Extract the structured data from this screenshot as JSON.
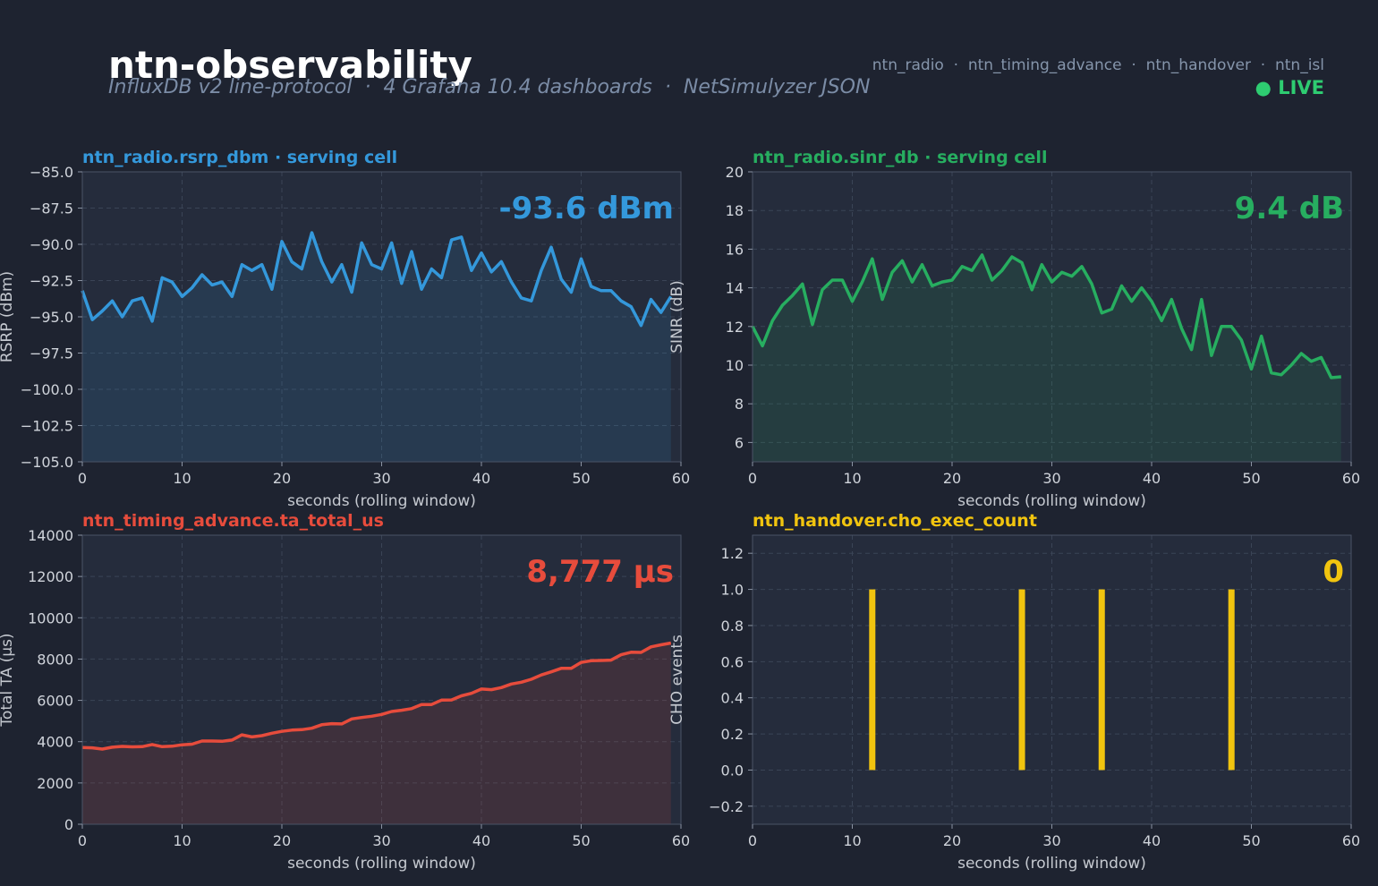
{
  "header": {
    "title": "ntn-observability",
    "subtitle": "InfluxDB v2 line-protocol  ·  4 Grafana 10.4 dashboards  ·  NetSimulyzer JSON",
    "measurements": "ntn_radio  ·  ntn_timing_advance  ·  ntn_handover  ·  ntn_isl",
    "live_label": "● LIVE"
  },
  "colors": {
    "background": "#1e2330",
    "plot_background": "#252c3c",
    "grid": "#3a4456",
    "rsrp": "#3498db",
    "sinr": "#27ae60",
    "ta": "#e74c3c",
    "cho": "#f1c40f"
  },
  "chart_data": [
    {
      "id": "rsrp",
      "type": "area",
      "title": "ntn_radio.rsrp_dbm  ·  serving cell",
      "stat": "-93.6 dBm",
      "xlabel": "seconds (rolling window)",
      "ylabel": "RSRP (dBm)",
      "xlim": [
        0,
        60
      ],
      "ylim": [
        -105,
        -85
      ],
      "xticks": [
        0,
        10,
        20,
        30,
        40,
        50,
        60
      ],
      "yticks": [
        -105,
        -102.5,
        -100,
        -97.5,
        -95,
        -92.5,
        -90,
        -87.5,
        -85
      ],
      "ytick_labels": [
        "−105.0",
        "−102.5",
        "−100.0",
        "−97.5",
        "−95.0",
        "−92.5",
        "−90.0",
        "−87.5",
        "−85.0"
      ],
      "grid": true,
      "series": [
        {
          "values": [
            -93.2,
            -95.2,
            -94.6,
            -93.9,
            -95.0,
            -93.9,
            -93.7,
            -95.3,
            -92.3,
            -92.6,
            -93.6,
            -93.0,
            -92.1,
            -92.8,
            -92.6,
            -93.6,
            -91.4,
            -91.8,
            -91.4,
            -93.1,
            -89.8,
            -91.2,
            -91.7,
            -89.2,
            -91.2,
            -92.6,
            -91.4,
            -93.3,
            -89.9,
            -91.4,
            -91.7,
            -89.9,
            -92.7,
            -90.5,
            -93.1,
            -91.7,
            -92.3,
            -89.7,
            -89.5,
            -91.8,
            -90.6,
            -91.9,
            -91.2,
            -92.6,
            -93.7,
            -93.9,
            -91.8,
            -90.2,
            -92.4,
            -93.3,
            -91.0,
            -92.9,
            -93.2,
            -93.2,
            -93.9,
            -94.3,
            -95.6,
            -93.8,
            -94.7,
            -93.6
          ]
        }
      ]
    },
    {
      "id": "sinr",
      "type": "area",
      "title": "ntn_radio.sinr_db  ·  serving cell",
      "stat": "9.4 dB",
      "xlabel": "seconds (rolling window)",
      "ylabel": "SINR (dB)",
      "xlim": [
        0,
        60
      ],
      "ylim": [
        5,
        20
      ],
      "xticks": [
        0,
        10,
        20,
        30,
        40,
        50,
        60
      ],
      "yticks": [
        6,
        8,
        10,
        12,
        14,
        16,
        18,
        20
      ],
      "ytick_labels": [
        "6",
        "8",
        "10",
        "12",
        "14",
        "16",
        "18",
        "20"
      ],
      "grid": true,
      "series": [
        {
          "values": [
            12.0,
            11.0,
            12.3,
            13.1,
            13.6,
            14.2,
            12.1,
            13.9,
            14.4,
            14.4,
            13.3,
            14.3,
            15.5,
            13.4,
            14.8,
            15.4,
            14.3,
            15.2,
            14.1,
            14.3,
            14.4,
            15.1,
            14.9,
            15.7,
            14.4,
            14.9,
            15.6,
            15.3,
            13.9,
            15.2,
            14.3,
            14.8,
            14.6,
            15.1,
            14.2,
            12.7,
            12.9,
            14.1,
            13.3,
            14.0,
            13.3,
            12.3,
            13.4,
            11.9,
            10.8,
            13.4,
            10.5,
            12.0,
            12.0,
            11.3,
            9.8,
            11.5,
            9.6,
            9.5,
            10.0,
            10.6,
            10.2,
            10.4,
            9.35,
            9.4
          ]
        }
      ]
    },
    {
      "id": "ta",
      "type": "area",
      "title": "ntn_timing_advance.ta_total_us",
      "stat": "8,777 µs",
      "xlabel": "seconds (rolling window)",
      "ylabel": "Total TA (µs)",
      "xlim": [
        0,
        60
      ],
      "ylim": [
        0,
        14000
      ],
      "xticks": [
        0,
        10,
        20,
        30,
        40,
        50,
        60
      ],
      "yticks": [
        0,
        2000,
        4000,
        6000,
        8000,
        10000,
        12000,
        14000
      ],
      "ytick_labels": [
        "0",
        "2000",
        "4000",
        "6000",
        "8000",
        "10000",
        "12000",
        "14000"
      ],
      "grid": true,
      "series": [
        {
          "values": [
            3720,
            3700,
            3640,
            3730,
            3770,
            3750,
            3760,
            3860,
            3760,
            3780,
            3850,
            3880,
            4030,
            4030,
            4020,
            4080,
            4330,
            4230,
            4290,
            4410,
            4500,
            4560,
            4580,
            4650,
            4820,
            4870,
            4860,
            5100,
            5170,
            5230,
            5320,
            5460,
            5520,
            5600,
            5800,
            5800,
            6010,
            6020,
            6220,
            6340,
            6550,
            6520,
            6620,
            6790,
            6880,
            7020,
            7230,
            7380,
            7550,
            7550,
            7840,
            7920,
            7930,
            7950,
            8210,
            8330,
            8320,
            8590,
            8690,
            8777
          ]
        }
      ]
    },
    {
      "id": "cho",
      "type": "bar",
      "title": "ntn_handover.cho_exec_count",
      "stat": "0",
      "xlabel": "seconds (rolling window)",
      "ylabel": "CHO events",
      "xlim": [
        0,
        60
      ],
      "ylim": [
        -0.3,
        1.3
      ],
      "xticks": [
        0,
        10,
        20,
        30,
        40,
        50,
        60
      ],
      "yticks": [
        -0.2,
        0.0,
        0.2,
        0.4,
        0.6,
        0.8,
        1.0,
        1.2
      ],
      "ytick_labels": [
        "−0.2",
        "0.0",
        "0.2",
        "0.4",
        "0.6",
        "0.8",
        "1.0",
        "1.2"
      ],
      "grid": true,
      "series": [
        {
          "x": [
            12,
            27,
            35,
            48
          ],
          "values": [
            1,
            1,
            1,
            1
          ]
        }
      ]
    }
  ]
}
